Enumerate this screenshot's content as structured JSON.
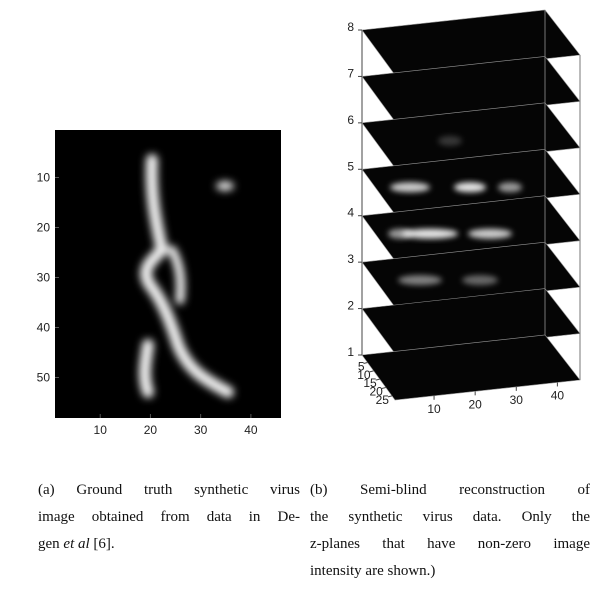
{
  "figure_a": {
    "x_ticks": [
      10,
      20,
      30,
      40
    ],
    "y_ticks": [
      10,
      20,
      30,
      40,
      50
    ],
    "caption": {
      "lines": [
        "(a) Ground truth synthetic virus",
        "image obtained from data in De-"
      ],
      "last": {
        "before": "gen ",
        "italic": "et al",
        "after": " [6]."
      }
    }
  },
  "figure_b": {
    "z_ticks": [
      1,
      2,
      3,
      4,
      5,
      6,
      7,
      8
    ],
    "y_ticks": [
      5,
      10,
      15,
      20,
      25
    ],
    "x_ticks": [
      10,
      20,
      30,
      40
    ],
    "caption": {
      "lines": [
        "(b) Semi-blind reconstruction of",
        "the synthetic virus data. Only the",
        "z-planes that have non-zero image",
        "intensity are shown.)"
      ]
    }
  }
}
